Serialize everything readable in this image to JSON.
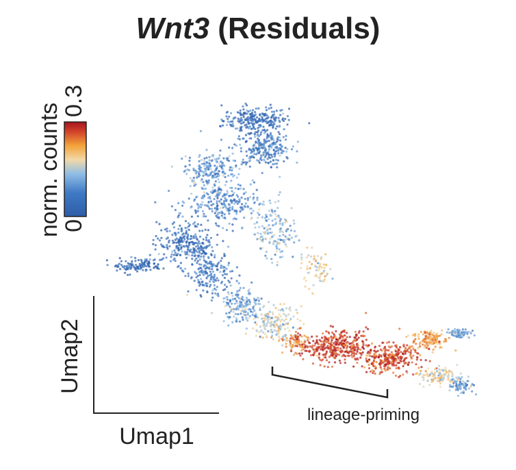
{
  "title": {
    "gene": "Wnt3",
    "suffix": " (Residuals)"
  },
  "colorbar": {
    "label": "norm. counts",
    "min_label": "0",
    "max_label": "0.3"
  },
  "axes": {
    "xlabel": "Umap1",
    "ylabel": "Umap2",
    "ticks_shown": false,
    "grid": false
  },
  "annotation": {
    "text": "lineage-priming"
  },
  "chart_data": {
    "type": "scatter",
    "title": "Wnt3 (Residuals)",
    "xlabel": "Umap1",
    "ylabel": "Umap2",
    "color_scale": {
      "label": "norm. counts",
      "min": 0,
      "max": 0.3,
      "stops": [
        "#2f5da8",
        "#3f79c4",
        "#8fbde6",
        "#f1d9a8",
        "#f3a33a",
        "#d0402a",
        "#a5151e"
      ]
    },
    "colorbar_placement": "top-left",
    "annotations": [
      {
        "text": "lineage-priming",
        "style": "bracket"
      }
    ],
    "regions": [
      {
        "x": 3.0,
        "y": 9.2,
        "sx": 0.9,
        "sy": 0.4,
        "n": 260,
        "value": 0.03
      },
      {
        "x": 3.2,
        "y": 8.3,
        "sx": 0.8,
        "sy": 0.5,
        "n": 240,
        "value": 0.05
      },
      {
        "x": 1.6,
        "y": 7.6,
        "sx": 0.7,
        "sy": 0.5,
        "n": 200,
        "value": 0.07
      },
      {
        "x": 2.0,
        "y": 6.5,
        "sx": 1.0,
        "sy": 0.6,
        "n": 260,
        "value": 0.06
      },
      {
        "x": 0.9,
        "y": 5.2,
        "sx": 0.8,
        "sy": 0.6,
        "n": 260,
        "value": 0.03
      },
      {
        "x": -0.6,
        "y": 4.5,
        "sx": 0.7,
        "sy": 0.2,
        "n": 120,
        "value": 0.02
      },
      {
        "x": 1.6,
        "y": 4.2,
        "sx": 0.6,
        "sy": 0.6,
        "n": 180,
        "value": 0.04
      },
      {
        "x": 3.6,
        "y": 5.6,
        "sx": 0.6,
        "sy": 0.9,
        "n": 160,
        "value": 0.1
      },
      {
        "x": 4.8,
        "y": 4.4,
        "sx": 0.4,
        "sy": 0.5,
        "n": 70,
        "value": 0.15
      },
      {
        "x": 2.6,
        "y": 3.2,
        "sx": 0.6,
        "sy": 0.5,
        "n": 170,
        "value": 0.08
      },
      {
        "x": 3.6,
        "y": 2.6,
        "sx": 0.6,
        "sy": 0.5,
        "n": 170,
        "value": 0.13
      },
      {
        "x": 4.2,
        "y": 2.0,
        "sx": 0.3,
        "sy": 0.3,
        "n": 80,
        "value": 0.2
      },
      {
        "x": 5.4,
        "y": 1.9,
        "sx": 0.9,
        "sy": 0.45,
        "n": 360,
        "value": 0.26
      },
      {
        "x": 7.0,
        "y": 1.5,
        "sx": 0.9,
        "sy": 0.45,
        "n": 300,
        "value": 0.25
      },
      {
        "x": 8.3,
        "y": 2.1,
        "sx": 0.5,
        "sy": 0.3,
        "n": 140,
        "value": 0.2
      },
      {
        "x": 9.2,
        "y": 2.3,
        "sx": 0.3,
        "sy": 0.15,
        "n": 70,
        "value": 0.08
      },
      {
        "x": 8.6,
        "y": 0.9,
        "sx": 0.6,
        "sy": 0.25,
        "n": 110,
        "value": 0.14
      },
      {
        "x": 9.2,
        "y": 0.6,
        "sx": 0.4,
        "sy": 0.2,
        "n": 70,
        "value": 0.07
      }
    ]
  }
}
